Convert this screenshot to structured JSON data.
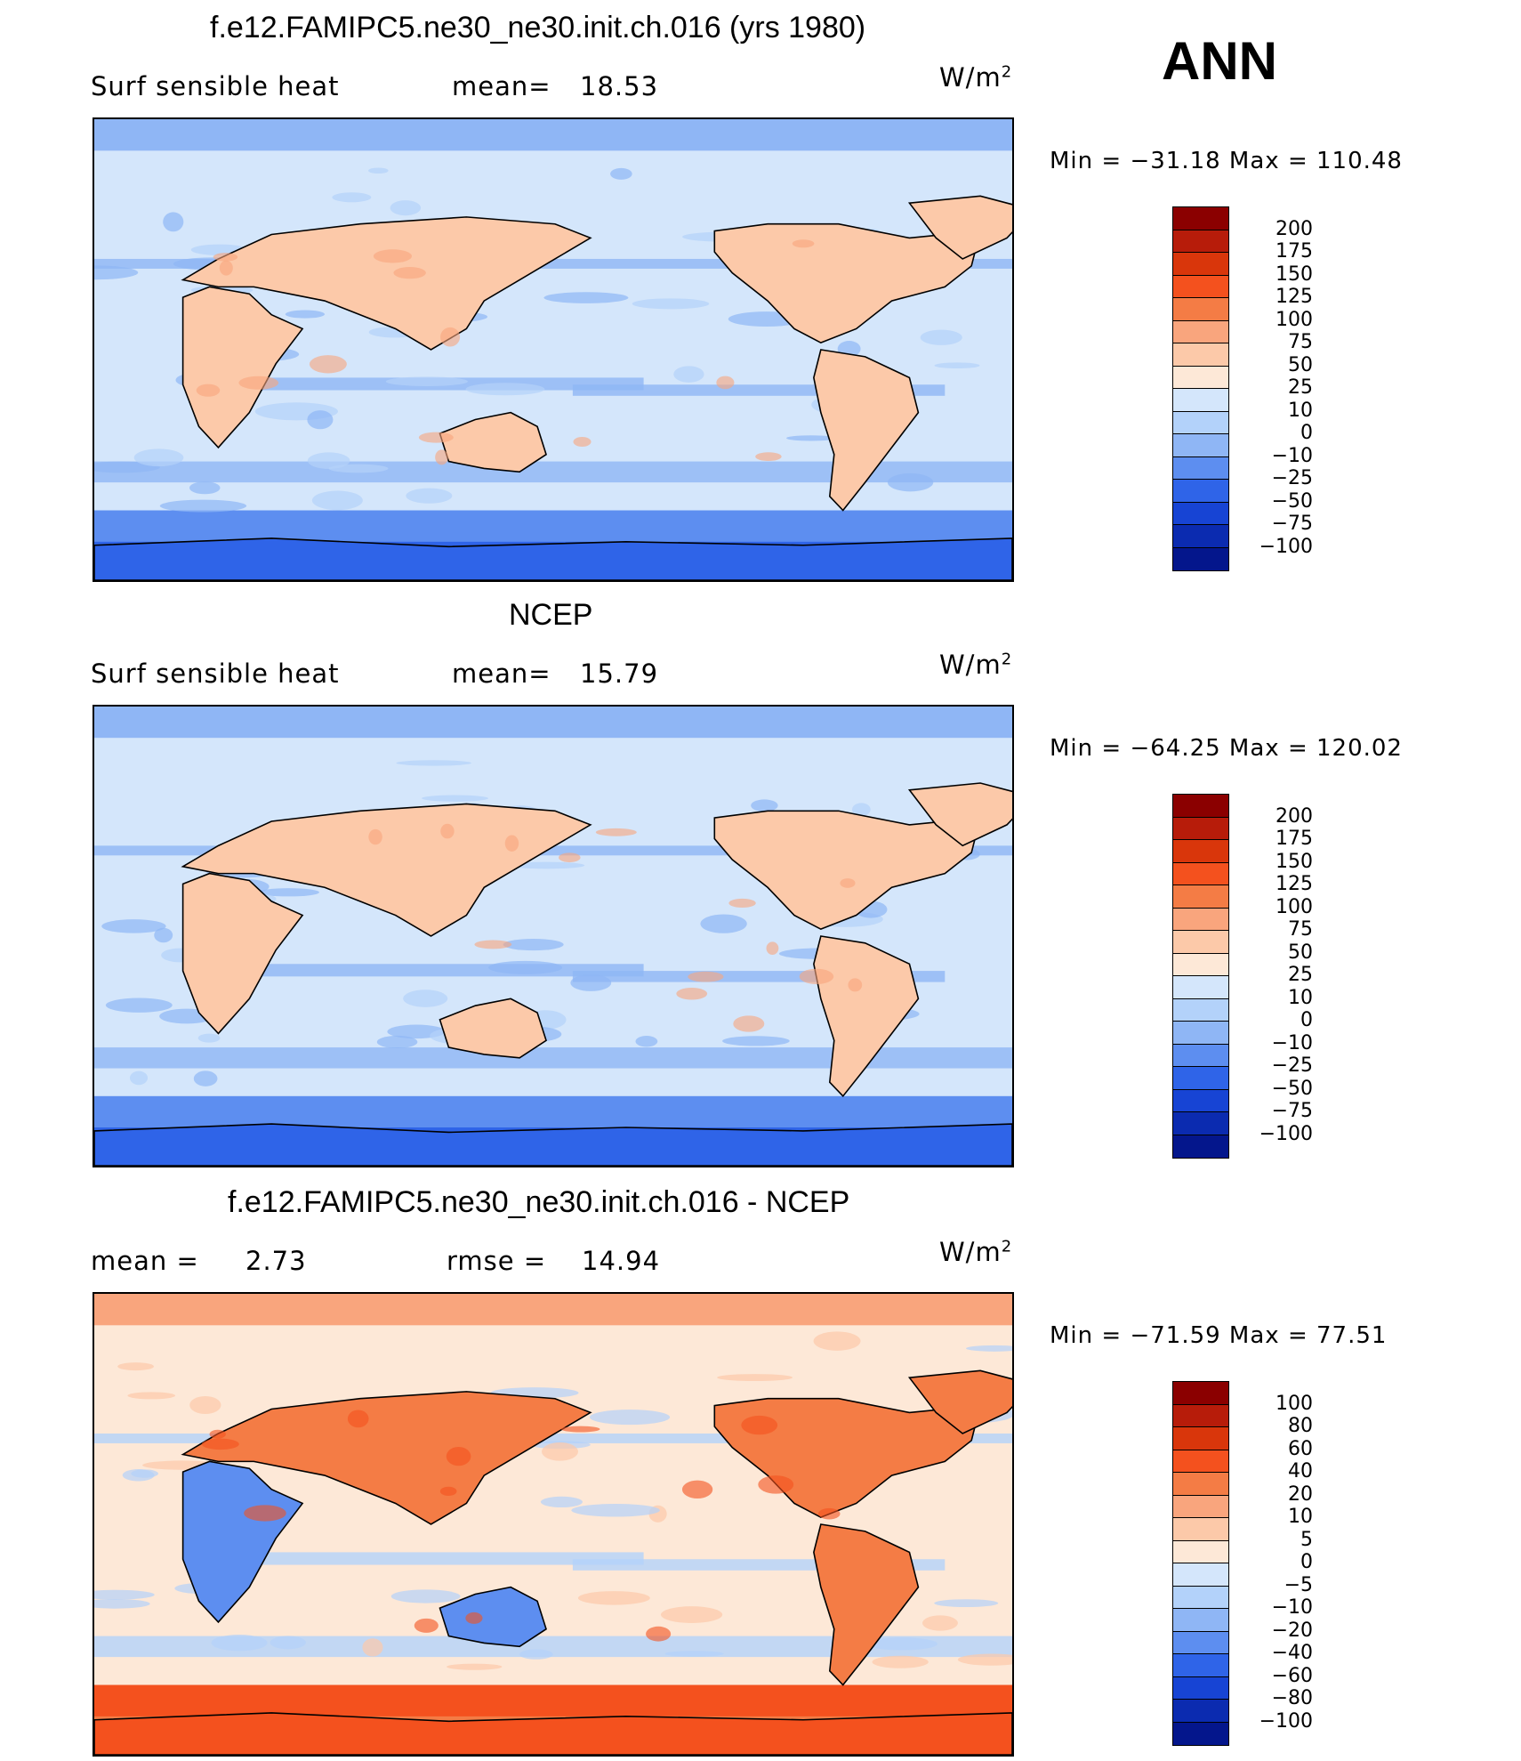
{
  "season": "ANN",
  "panels": [
    {
      "id": "model",
      "title": "f.e12.FAMIPC5.ne30_ne30.init.ch.016 (yrs 1980)",
      "variable": "Surf  sensible  heat",
      "stat1_label": "mean=",
      "stat1_value": "18.53",
      "stat2_label": "",
      "stat2_value": "",
      "units_base": "W/m",
      "units_exp": "2",
      "minmax_text": "Min  =  −31.18  Max  =  110.48",
      "colorbar_colors": [
        "#8b0000",
        "#b71c0a",
        "#d9360b",
        "#f4511e",
        "#f47c45",
        "#f9a57d",
        "#fcc9a9",
        "#fde8d7",
        "#d4e6fb",
        "#b3d2fa",
        "#8fb6f5",
        "#5d8ef0",
        "#2f64e8",
        "#1744d4",
        "#0b2bb0",
        "#04168c"
      ],
      "colorbar_labels": [
        "200",
        "175",
        "150",
        "125",
        "100",
        "75",
        "50",
        "25",
        "10",
        "0",
        "−10",
        "−25",
        "−50",
        "−75",
        "−100"
      ],
      "field_palette": "abs"
    },
    {
      "id": "obs",
      "title": "NCEP",
      "variable": "Surf  sensible  heat",
      "stat1_label": "mean=",
      "stat1_value": "15.79",
      "stat2_label": "",
      "stat2_value": "",
      "units_base": "W/m",
      "units_exp": "2",
      "minmax_text": "Min  =  −64.25  Max  =  120.02",
      "colorbar_colors": [
        "#8b0000",
        "#b71c0a",
        "#d9360b",
        "#f4511e",
        "#f47c45",
        "#f9a57d",
        "#fcc9a9",
        "#fde8d7",
        "#d4e6fb",
        "#b3d2fa",
        "#8fb6f5",
        "#5d8ef0",
        "#2f64e8",
        "#1744d4",
        "#0b2bb0",
        "#04168c"
      ],
      "colorbar_labels": [
        "200",
        "175",
        "150",
        "125",
        "100",
        "75",
        "50",
        "25",
        "10",
        "0",
        "−10",
        "−25",
        "−50",
        "−75",
        "−100"
      ],
      "field_palette": "abs"
    },
    {
      "id": "diff",
      "title": "f.e12.FAMIPC5.ne30_ne30.init.ch.016 - NCEP",
      "variable": "",
      "stat1_label": "mean  =",
      "stat1_value": "2.73",
      "stat2_label": "rmse  =",
      "stat2_value": "14.94",
      "units_base": "W/m",
      "units_exp": "2",
      "minmax_text": "Min  =  −71.59  Max  =   77.51",
      "colorbar_colors": [
        "#8b0000",
        "#b71c0a",
        "#d9360b",
        "#f4511e",
        "#f47c45",
        "#f9a57d",
        "#fcc9a9",
        "#fde8d7",
        "#d4e6fb",
        "#b3d2fa",
        "#8fb6f5",
        "#5d8ef0",
        "#2f64e8",
        "#1744d4",
        "#0b2bb0",
        "#04168c"
      ],
      "colorbar_labels": [
        "100",
        "80",
        "60",
        "40",
        "20",
        "10",
        "5",
        "0",
        "−5",
        "−10",
        "−20",
        "−40",
        "−60",
        "−80",
        "−100"
      ],
      "field_palette": "diff"
    }
  ]
}
